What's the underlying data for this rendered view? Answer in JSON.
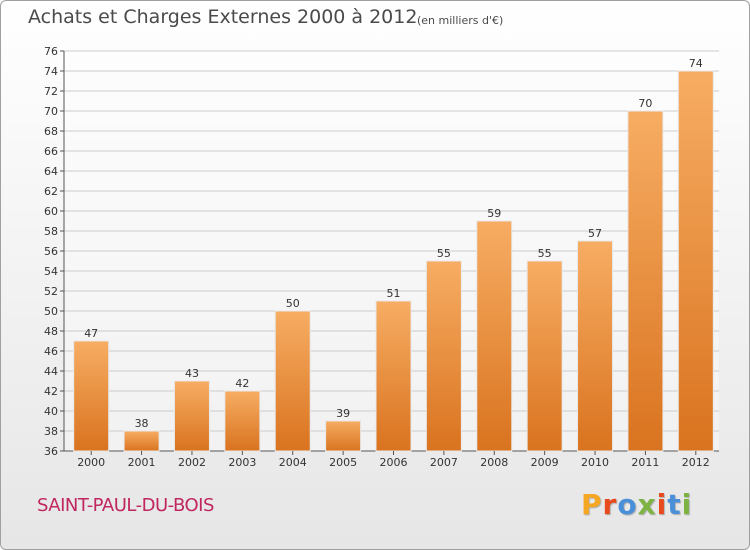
{
  "header": {
    "title": "Achats et Charges Externes 2000 à 2012",
    "subtitle": "(en milliers d'€)"
  },
  "footer": {
    "commune": "SAINT-PAUL-DU-BOIS",
    "brand": "Proxiti",
    "brand_colors": [
      "#f5a623",
      "#e8491d",
      "#4a90d9",
      "#7cb342",
      "#e8491d",
      "#4a90d9",
      "#7cb342"
    ]
  },
  "colors": {
    "bar_top": "#f7ad63",
    "bar_bottom": "#d9731f",
    "grid": "#cccccc",
    "commune": "#c0265f"
  },
  "chart_data": {
    "type": "bar",
    "title": "Achats et Charges Externes 2000 à 2012",
    "subtitle": "(en milliers d'€)",
    "categories": [
      "2000",
      "2001",
      "2002",
      "2003",
      "2004",
      "2005",
      "2006",
      "2007",
      "2008",
      "2009",
      "2010",
      "2011",
      "2012"
    ],
    "values": [
      47,
      38,
      43,
      42,
      50,
      39,
      51,
      55,
      59,
      55,
      57,
      70,
      74
    ],
    "ylim": [
      36,
      76
    ],
    "ytick_step": 2,
    "grid": true,
    "xlabel": "",
    "ylabel": ""
  }
}
